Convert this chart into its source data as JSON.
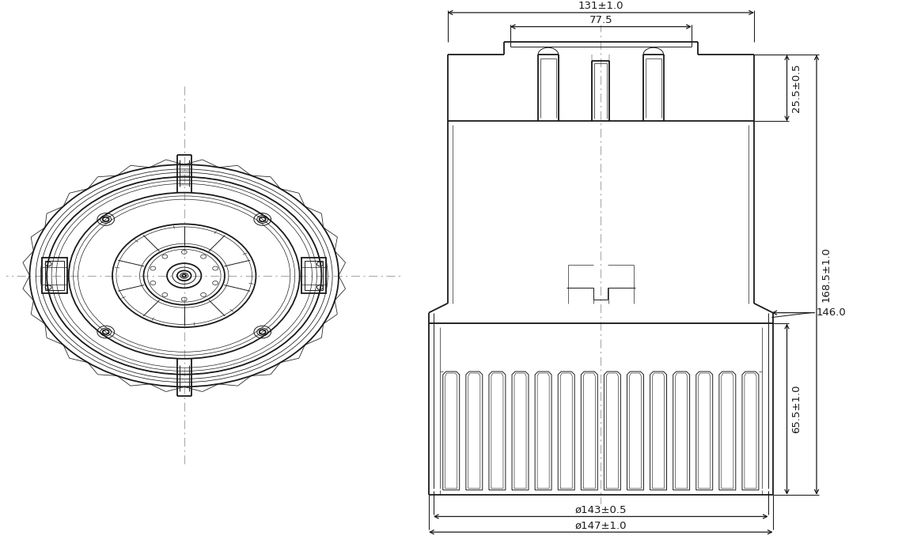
{
  "bg_color": "#ffffff",
  "line_color": "#1a1a1a",
  "dim_color": "#1a1a1a",
  "center_line_color": "#aaaaaa",
  "lw_main": 1.3,
  "lw_thin": 0.7,
  "lw_dim": 0.9,
  "dims": {
    "top_width_outer": "131±1.0",
    "top_width_inner": "77.5",
    "side_top": "25.5±0.5",
    "side_total": "168.5±1.0",
    "side_bottom": "65.5±1.0",
    "flange_dia": "146.0",
    "bottom_dia1": "ø143±0.5",
    "bottom_dia2": "ø147±1.0"
  }
}
